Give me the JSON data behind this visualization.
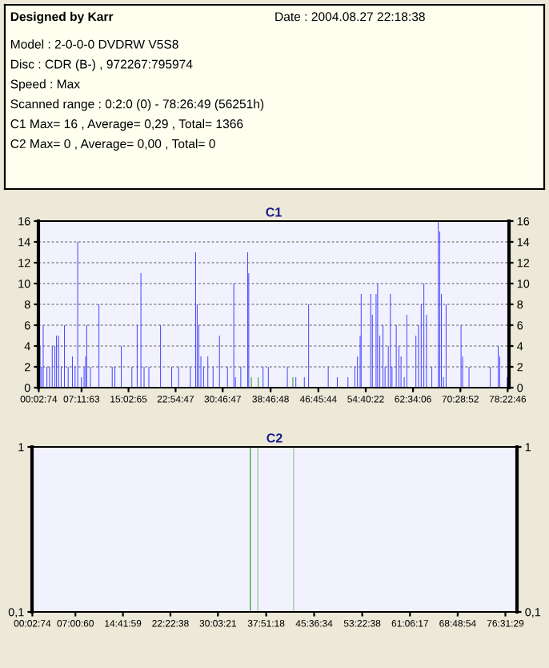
{
  "chart_data": [
    {
      "type": "bar",
      "title": "C1",
      "annotations": [
        "Designed by Karr",
        "Date : 2004.08.27 22:18:38",
        "Model : 2-0-0-0 DVDRW V5S8",
        "Disc : CDR (B-) , 972267:795974",
        "Speed : Max",
        "Scanned range : 0:2:0 (0) - 78:26:49 (56251h)",
        "C1 Max= 16 , Average= 0,29 , Total= 1366",
        "C2 Max= 0 , Average= 0,00 , Total= 0"
      ],
      "series": [
        {
          "color": "#4a4aff",
          "x": [
            0.27,
            0.53,
            0.8,
            1.42,
            1.86,
            2.31,
            2.75,
            3.02,
            3.37,
            3.81,
            4.35,
            4.97,
            5.68,
            6.12,
            6.56,
            7.19,
            7.63,
            7.89,
            8.07,
            8.69,
            10.11,
            12.33,
            12.77,
            13.84,
            15.61,
            16.5,
            17.12,
            17.65,
            18.45,
            20.4,
            22.26,
            23.42,
            25.37,
            26.26,
            26.52,
            26.79,
            27.14,
            27.59,
            28.3,
            29.18,
            30.25,
            31.58,
            32.64,
            32.91,
            33.8,
            34.95,
            35.13,
            37.52,
            38.41,
            41.58,
            43.0,
            44.42,
            45.13,
            48.41,
            49.92,
            51.7,
            52.85,
            53.29,
            53.74,
            53.91,
            55.51,
            55.78,
            56.4,
            56.66,
            57.02,
            57.55,
            57.9,
            58.44,
            58.79,
            59.06,
            59.77,
            60.21,
            60.57,
            61.1,
            61.54,
            63.05,
            63.49,
            63.94,
            64.38,
            64.82,
            65.71,
            66.78,
            67.04,
            67.31,
            67.66,
            68.1,
            70.59,
            70.85,
            71.92,
            75.47,
            76.8,
            77.06,
            78.3
          ],
          "values": [
            4,
            2,
            6,
            2,
            2,
            4,
            4,
            5,
            5,
            2,
            6,
            2,
            3,
            2,
            14,
            1,
            2,
            3,
            6,
            2,
            8,
            2,
            2,
            4,
            2,
            6,
            11,
            2,
            2,
            6,
            2,
            2,
            2,
            13,
            8,
            6,
            3,
            2,
            3,
            2,
            5,
            2,
            10,
            1,
            2,
            13,
            11,
            2,
            2,
            2,
            1,
            1,
            8,
            2,
            1,
            1,
            2,
            3,
            5,
            9,
            9,
            7,
            9,
            10,
            5,
            6,
            2,
            4,
            9,
            2,
            6,
            4,
            3,
            1,
            7,
            5,
            6,
            8,
            10,
            7,
            2,
            16,
            15,
            9,
            1,
            8,
            6,
            3,
            2,
            2,
            4,
            3,
            1
          ]
        },
        {
          "color": "#2e9e2e",
          "x": [
            35.57,
            36.72,
            42.5
          ],
          "values": [
            1,
            1,
            1
          ]
        }
      ],
      "xlim": [
        0,
        78.6
      ],
      "ylim": [
        0,
        16
      ],
      "yticks": [
        0,
        2,
        4,
        6,
        8,
        10,
        12,
        14,
        16
      ],
      "y2lim": [
        0,
        16
      ],
      "y2ticks": [
        0,
        2,
        4,
        6,
        8,
        10,
        12,
        14,
        16
      ],
      "xticks": [
        {
          "value": 0.0539,
          "label": "00:02:74"
        },
        {
          "value": 7.2008,
          "label": "07:11:63"
        },
        {
          "value": 15.0514,
          "label": "15:02:65"
        },
        {
          "value": 22.9131,
          "label": "22:54:47"
        },
        {
          "value": 30.7797,
          "label": "30:46:47"
        },
        {
          "value": 38.78,
          "label": "38:46:48"
        },
        {
          "value": 46.7622,
          "label": "46:45:44"
        },
        {
          "value": 54.6728,
          "label": "54:40:22"
        },
        {
          "value": 62.5683,
          "label": "62:34:06"
        },
        {
          "value": 70.4811,
          "label": "70:28:52"
        },
        {
          "value": 78.3794,
          "label": "78:22:46"
        }
      ],
      "grid": "y",
      "legend": false
    },
    {
      "type": "bar",
      "title": "C2",
      "series": [
        {
          "colors": [
            "#1a8a1a",
            "#7cc47c",
            "#7cc47c"
          ],
          "x": [
            35.3,
            36.5,
            42.3
          ],
          "values": [
            1,
            1,
            1
          ]
        }
      ],
      "xlim": [
        0,
        78.4
      ],
      "ylim": [
        0.1,
        1
      ],
      "yticks": [
        {
          "value": 0.1,
          "label": "0,1"
        },
        1
      ],
      "y2lim": [
        0.1,
        1
      ],
      "y2ticks": [
        {
          "value": 0.1,
          "label": "0,1"
        },
        1
      ],
      "xticks": [
        {
          "value": 0.0539,
          "label": "00:02:74"
        },
        {
          "value": 7.0167,
          "label": "07:00:60"
        },
        {
          "value": 14.6997,
          "label": "14:41:59"
        },
        {
          "value": 22.3772,
          "label": "22:22:38"
        },
        {
          "value": 30.0558,
          "label": "30:03:21"
        },
        {
          "value": 37.855,
          "label": "37:51:18"
        },
        {
          "value": 45.6094,
          "label": "45:36:34"
        },
        {
          "value": 53.3772,
          "label": "53:22:38"
        },
        {
          "value": 61.1047,
          "label": "61:06:17"
        },
        {
          "value": 68.815,
          "label": "68:48:54"
        },
        {
          "value": 76.5248,
          "label": "76:31:29"
        }
      ],
      "legend": false
    }
  ]
}
